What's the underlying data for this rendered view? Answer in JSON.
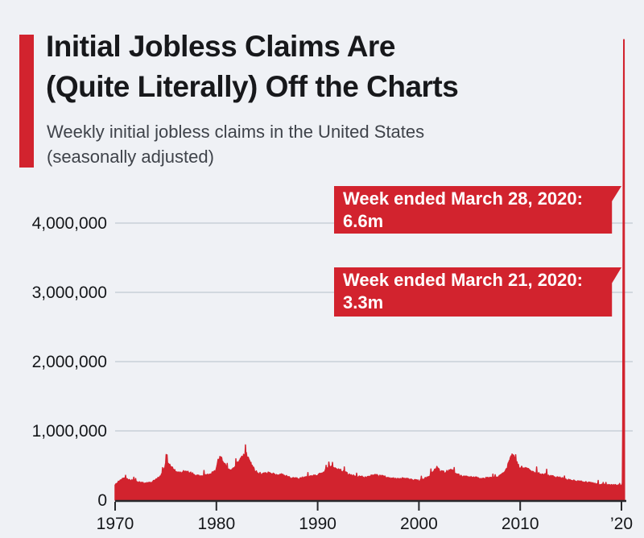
{
  "header": {
    "title_line1": "Initial Jobless Claims Are",
    "title_line2": "(Quite Literally) Off the Charts",
    "subtitle_line1": "Weekly initial jobless claims in the United States",
    "subtitle_line2": "(seasonally adjusted)"
  },
  "colors": {
    "accent_red": "#d2232e",
    "background": "#eff1f5",
    "grid": "#c9cfd8",
    "axis": "#27282b",
    "tick_label": "#15171a",
    "title_text": "#17181b",
    "subtitle_text": "#3f434a",
    "callout_text": "#ffffff"
  },
  "chart_data": {
    "type": "area",
    "title": "Initial Jobless Claims Are (Quite Literally) Off the Charts",
    "subtitle": "Weekly initial jobless claims in the United States (seasonally adjusted)",
    "series_name": "Weekly initial jobless claims (seasonally adjusted)",
    "xlabel": "",
    "ylabel": "",
    "grid": "horizontal",
    "xlim": [
      1970,
      2020.5
    ],
    "ylim": [
      0,
      4300000
    ],
    "spike_exceeds_axis": true,
    "values_unit": "thousands of claims",
    "x": [
      1970.0,
      1970.3,
      1970.6,
      1971.0,
      1971.4,
      1971.8,
      1972.2,
      1972.6,
      1973.0,
      1973.5,
      1974.0,
      1974.5,
      1974.8,
      1975.05,
      1975.3,
      1975.7,
      1976.0,
      1976.4,
      1976.8,
      1977.2,
      1977.6,
      1978.0,
      1978.5,
      1979.0,
      1979.5,
      1979.9,
      1980.2,
      1980.45,
      1980.8,
      1981.1,
      1981.5,
      1981.9,
      1982.3,
      1982.7,
      1982.95,
      1983.2,
      1983.6,
      1984.0,
      1984.5,
      1985.0,
      1985.5,
      1986.0,
      1986.5,
      1987.0,
      1987.5,
      1988.0,
      1988.5,
      1989.0,
      1989.5,
      1990.0,
      1990.5,
      1990.9,
      1991.2,
      1991.5,
      1991.9,
      1992.3,
      1992.7,
      1993.1,
      1993.6,
      1994.1,
      1994.6,
      1995.1,
      1995.6,
      1996.0,
      1996.5,
      1997.0,
      1997.5,
      1998.0,
      1998.5,
      1999.0,
      1999.5,
      2000.0,
      2000.5,
      2001.0,
      2001.4,
      2001.75,
      2002.1,
      2002.5,
      2002.9,
      2003.2,
      2003.6,
      2004.0,
      2004.5,
      2005.0,
      2005.5,
      2006.0,
      2006.5,
      2007.0,
      2007.5,
      2008.0,
      2008.4,
      2008.8,
      2009.1,
      2009.25,
      2009.6,
      2009.9,
      2010.3,
      2010.7,
      2011.1,
      2011.5,
      2012.0,
      2012.5,
      2013.0,
      2013.5,
      2014.0,
      2014.5,
      2015.0,
      2015.5,
      2016.0,
      2016.5,
      2017.0,
      2017.5,
      2018.0,
      2018.5,
      2019.0,
      2019.5,
      2019.9,
      2020.05,
      2020.12,
      2020.16,
      2020.2,
      2020.3
    ],
    "values": [
      225,
      262,
      300,
      310,
      295,
      280,
      262,
      250,
      240,
      250,
      290,
      345,
      430,
      545,
      510,
      455,
      405,
      390,
      410,
      400,
      385,
      355,
      340,
      355,
      385,
      420,
      600,
      625,
      515,
      450,
      425,
      480,
      580,
      640,
      675,
      590,
      470,
      395,
      375,
      390,
      385,
      365,
      375,
      335,
      315,
      308,
      320,
      330,
      345,
      360,
      390,
      445,
      495,
      465,
      450,
      425,
      405,
      365,
      348,
      340,
      330,
      345,
      360,
      350,
      340,
      320,
      308,
      302,
      312,
      298,
      288,
      278,
      300,
      345,
      405,
      470,
      415,
      400,
      415,
      430,
      395,
      355,
      338,
      325,
      332,
      302,
      315,
      318,
      322,
      352,
      385,
      505,
      630,
      662,
      555,
      480,
      465,
      450,
      405,
      400,
      372,
      368,
      342,
      332,
      328,
      298,
      282,
      272,
      268,
      258,
      246,
      238,
      226,
      214,
      222,
      214,
      210,
      215,
      282,
      3307,
      6648,
      6648
    ],
    "y_ticks": [
      {
        "value": 4000000,
        "label": "4,000,000"
      },
      {
        "value": 3000000,
        "label": "3,000,000"
      },
      {
        "value": 2000000,
        "label": "2,000,000"
      },
      {
        "value": 1000000,
        "label": "1,000,000"
      },
      {
        "value": 0,
        "label": "0"
      }
    ],
    "x_ticks": [
      {
        "year": 1970,
        "label": "1970"
      },
      {
        "year": 1980,
        "label": "1980"
      },
      {
        "year": 1990,
        "label": "1990"
      },
      {
        "year": 2000,
        "label": "2000"
      },
      {
        "year": 2010,
        "label": "2010"
      },
      {
        "year": 2020,
        "label": "’20"
      }
    ],
    "annotations": [
      {
        "label": "Week ended March 28, 2020:",
        "value_label": "6.6m",
        "value": 6648000
      },
      {
        "label": "Week ended March 21, 2020:",
        "value_label": "3.3m",
        "value": 3307000
      }
    ]
  }
}
